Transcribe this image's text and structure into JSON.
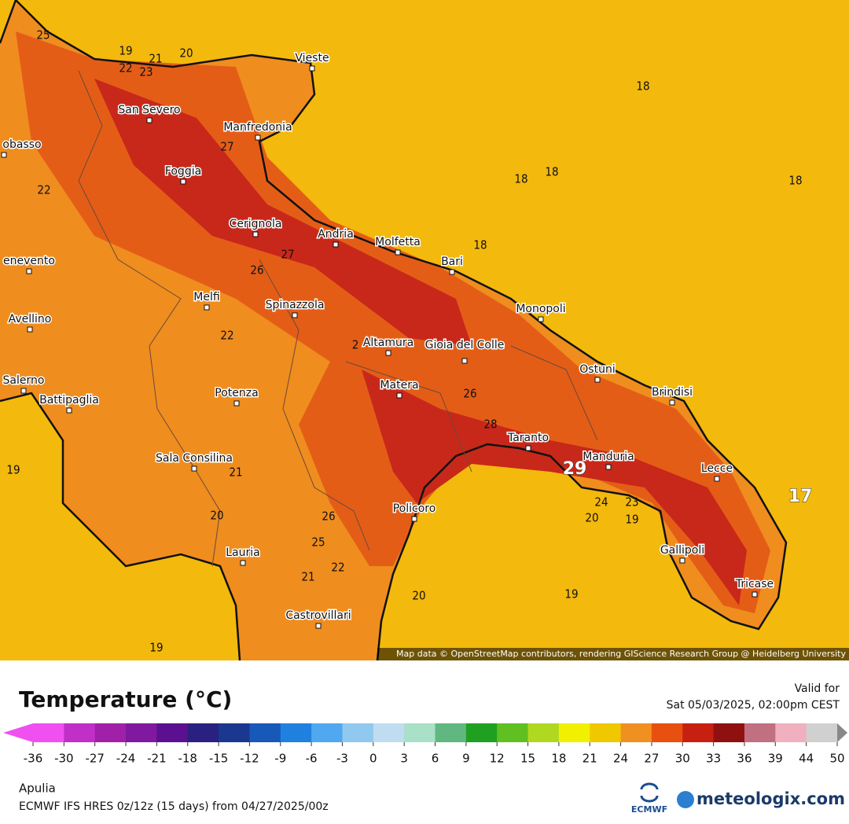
{
  "map": {
    "cities": [
      "Vieste",
      "San Severo",
      "Manfredonia",
      "obasso",
      "Foggia",
      "Cerignola",
      "Andria",
      "Molfetta",
      "Bari",
      "enevento",
      "Melfi",
      "Spinazzola",
      "Monopoli",
      "Avellino",
      "Altamura",
      "Gioia del Colle",
      "Ostuni",
      "Salerno",
      "Matera",
      "Brindisi",
      "Battipaglia",
      "Potenza",
      "Taranto",
      "Manduria",
      "Sala Consilina",
      "Lecce",
      "Policoro",
      "Gallipoli",
      "Lauria",
      "Tricase",
      "Castrovillari"
    ],
    "contour_labels": [
      25,
      19,
      21,
      20,
      22,
      23,
      18,
      27,
      18,
      18,
      18,
      22,
      27,
      18,
      26,
      22,
      2,
      26,
      28,
      29,
      19,
      21,
      17,
      24,
      23,
      20,
      19,
      20,
      26,
      25,
      22,
      21,
      20,
      19,
      19
    ],
    "attribution": "Map data © OpenStreetMap contributors, rendering GIScience Research Group @ Heidelberg University"
  },
  "legend": {
    "title": "Temperature (°C)",
    "ticks": [
      -36,
      -30,
      -27,
      -24,
      -21,
      -18,
      -15,
      -12,
      -9,
      -6,
      -3,
      0,
      3,
      6,
      9,
      12,
      15,
      18,
      21,
      24,
      27,
      30,
      33,
      36,
      39,
      44,
      50
    ],
    "colors": [
      "#f050f0",
      "#c030c8",
      "#a020a8",
      "#8018a0",
      "#5a1090",
      "#2a2080",
      "#1a3890",
      "#1858b8",
      "#2080e0",
      "#50a8f0",
      "#90c8f0",
      "#c0dcf0",
      "#a8e0c8",
      "#60b880",
      "#20a020",
      "#60c020",
      "#b0d820",
      "#f0f000",
      "#f0c800",
      "#f09020",
      "#e85010",
      "#c82010",
      "#901010",
      "#c07080",
      "#f0b0c0",
      "#d0d0d0"
    ]
  },
  "footer": {
    "valid_label": "Valid for",
    "valid_time": "Sat 05/03/2025, 02:00pm CEST",
    "region": "Apulia",
    "model": "ECMWF IFS HRES 0z/12z (15 days) from 04/27/2025/00z",
    "ecmwf": "ECMWF",
    "brand": "meteologix.com"
  }
}
